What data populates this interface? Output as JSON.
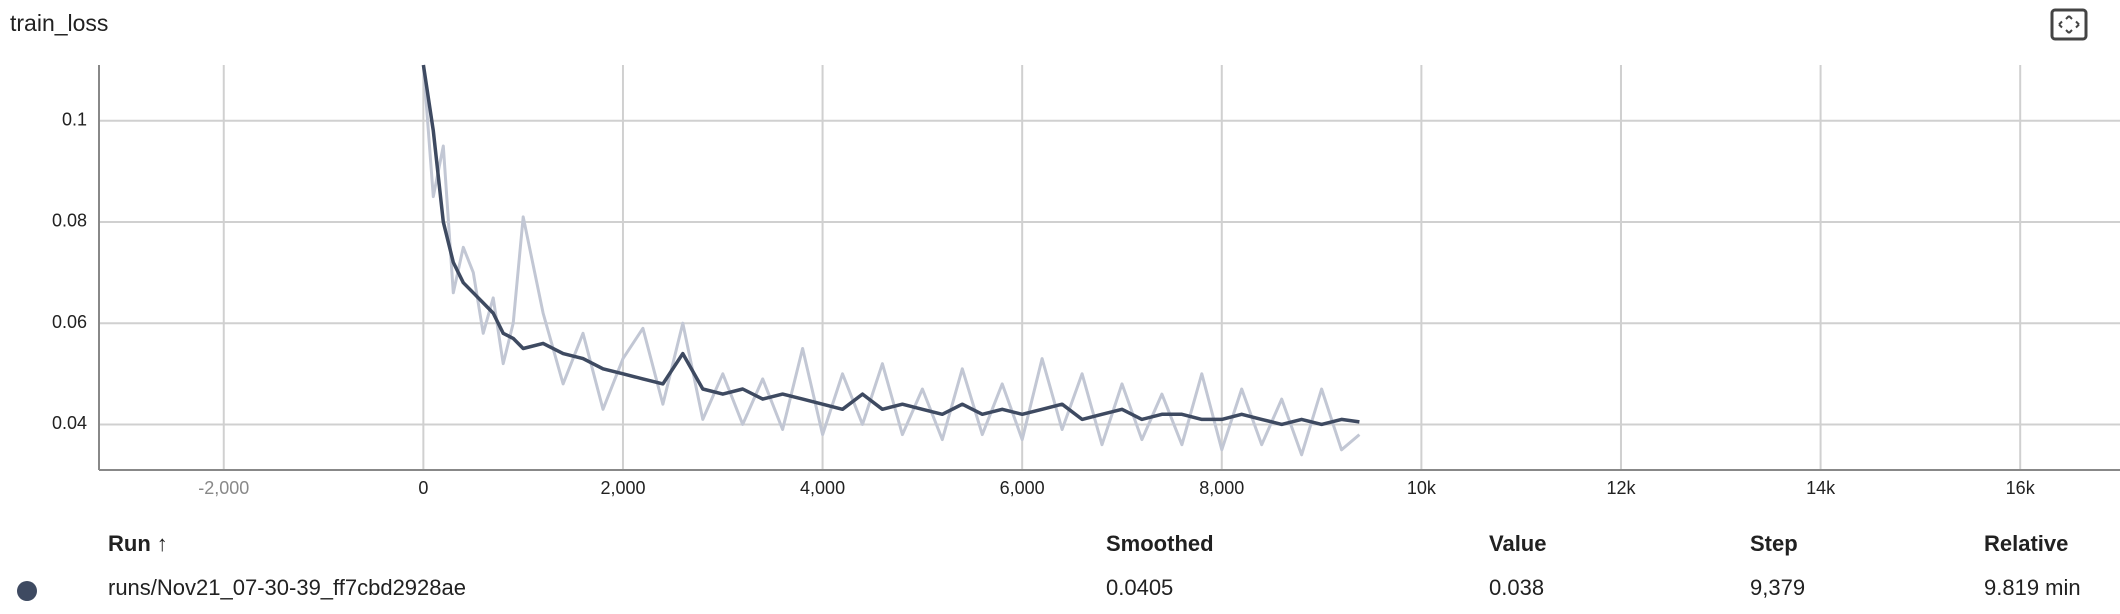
{
  "card": {
    "title": "train_loss"
  },
  "icons": {
    "expand": "fullscreen-expand-icon"
  },
  "colors": {
    "series_smoothed": "#3e4a61",
    "series_raw": "#c2c7d4",
    "grid": "#d0d0d0",
    "axis": "#888888"
  },
  "chart_data": {
    "type": "line",
    "title": "train_loss",
    "xlabel": "",
    "ylabel": "",
    "xlim": [
      -3250,
      17000
    ],
    "ylim": [
      0.031,
      0.111
    ],
    "x_ticks": [
      {
        "value": -2000,
        "label": "-2,000"
      },
      {
        "value": 0,
        "label": "0"
      },
      {
        "value": 2000,
        "label": "2,000"
      },
      {
        "value": 4000,
        "label": "4,000"
      },
      {
        "value": 6000,
        "label": "6,000"
      },
      {
        "value": 8000,
        "label": "8,000"
      },
      {
        "value": 10000,
        "label": "10k"
      },
      {
        "value": 12000,
        "label": "12k"
      },
      {
        "value": 14000,
        "label": "14k"
      },
      {
        "value": 16000,
        "label": "16k"
      }
    ],
    "y_ticks": [
      {
        "value": 0.04,
        "label": "0.04"
      },
      {
        "value": 0.06,
        "label": "0.06"
      },
      {
        "value": 0.08,
        "label": "0.08"
      },
      {
        "value": 0.1,
        "label": "0.1"
      }
    ],
    "grid": true,
    "series": [
      {
        "name": "runs/Nov21_07-30-39_ff7cbd2928ae",
        "x": [
          0,
          100,
          200,
          300,
          400,
          500,
          600,
          700,
          800,
          900,
          1000,
          1200,
          1400,
          1600,
          1800,
          2000,
          2200,
          2400,
          2600,
          2800,
          3000,
          3200,
          3400,
          3600,
          3800,
          4000,
          4200,
          4400,
          4600,
          4800,
          5000,
          5200,
          5400,
          5600,
          5800,
          6000,
          6200,
          6400,
          6600,
          6800,
          7000,
          7200,
          7400,
          7600,
          7800,
          8000,
          8200,
          8400,
          8600,
          8800,
          9000,
          9200,
          9379
        ],
        "smoothed": [
          0.111,
          0.098,
          0.08,
          0.072,
          0.068,
          0.066,
          0.064,
          0.062,
          0.058,
          0.057,
          0.055,
          0.056,
          0.054,
          0.053,
          0.051,
          0.05,
          0.049,
          0.048,
          0.054,
          0.047,
          0.046,
          0.047,
          0.045,
          0.046,
          0.045,
          0.044,
          0.043,
          0.046,
          0.043,
          0.044,
          0.043,
          0.042,
          0.044,
          0.042,
          0.043,
          0.042,
          0.043,
          0.044,
          0.041,
          0.042,
          0.043,
          0.041,
          0.042,
          0.042,
          0.041,
          0.041,
          0.042,
          0.041,
          0.04,
          0.041,
          0.04,
          0.041,
          0.0405
        ],
        "raw": [
          0.111,
          0.085,
          0.095,
          0.066,
          0.075,
          0.07,
          0.058,
          0.065,
          0.052,
          0.06,
          0.081,
          0.062,
          0.048,
          0.058,
          0.043,
          0.053,
          0.059,
          0.044,
          0.06,
          0.041,
          0.05,
          0.04,
          0.049,
          0.039,
          0.055,
          0.038,
          0.05,
          0.04,
          0.052,
          0.038,
          0.047,
          0.037,
          0.051,
          0.038,
          0.048,
          0.037,
          0.053,
          0.039,
          0.05,
          0.036,
          0.048,
          0.037,
          0.046,
          0.036,
          0.05,
          0.035,
          0.047,
          0.036,
          0.045,
          0.034,
          0.047,
          0.035,
          0.038
        ]
      }
    ]
  },
  "table": {
    "headers": {
      "run": "Run",
      "sort_indicator": "↑",
      "smoothed": "Smoothed",
      "value": "Value",
      "step": "Step",
      "relative": "Relative"
    },
    "rows": [
      {
        "run": "runs/Nov21_07-30-39_ff7cbd2928ae",
        "smoothed": "0.0405",
        "value": "0.038",
        "step": "9,379",
        "relative": "9.819 min"
      }
    ]
  }
}
